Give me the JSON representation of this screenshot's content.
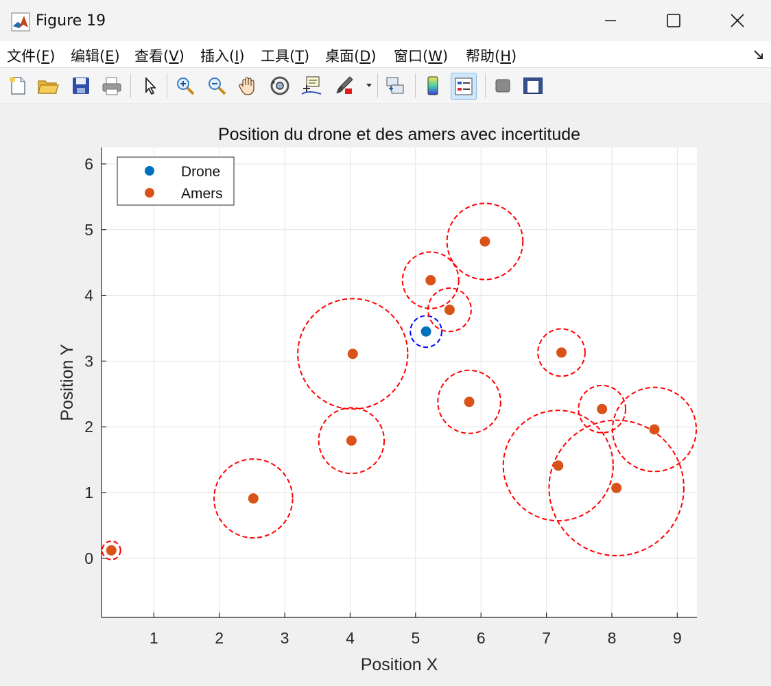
{
  "window": {
    "title": "Figure 19"
  },
  "menu": [
    {
      "label": "文件(",
      "key": "F",
      "suffix": ")"
    },
    {
      "label": "编辑(",
      "key": "E",
      "suffix": ")"
    },
    {
      "label": "查看(",
      "key": "V",
      "suffix": ")"
    },
    {
      "label": "插入(",
      "key": "I",
      "suffix": ")"
    },
    {
      "label": "工具(",
      "key": "T",
      "suffix": ")"
    },
    {
      "label": "桌面(",
      "key": "D",
      "suffix": ")"
    },
    {
      "label": "窗口(",
      "key": "W",
      "suffix": ")"
    },
    {
      "label": "帮助(",
      "key": "H",
      "suffix": ")"
    }
  ],
  "toolbar": [
    "new-figure-icon",
    "open-file-icon",
    "save-icon",
    "print-icon",
    "pointer-icon",
    "zoom-in-icon",
    "zoom-out-icon",
    "pan-hand-icon",
    "rotate-3d-icon",
    "data-cursor-icon",
    "brush-icon",
    "link-plot-icon",
    "colorbar-icon",
    "legend-icon",
    "hide-plot-tools-icon",
    "show-plot-tools-icon"
  ],
  "colors": {
    "drone": "#0072BD",
    "amers": "#D95319",
    "uncertainty_amers": "#FF0000",
    "uncertainty_drone": "#0000FF"
  },
  "chart_data": {
    "type": "scatter",
    "title": "Position du drone et des amers avec incertitude",
    "xlabel": "Position X",
    "ylabel": "Position Y",
    "xlim": [
      0.2,
      9.3
    ],
    "ylim": [
      -0.9,
      6.25
    ],
    "xticks": [
      1,
      2,
      3,
      4,
      5,
      6,
      7,
      8,
      9
    ],
    "yticks": [
      0,
      1,
      2,
      3,
      4,
      5,
      6
    ],
    "grid": true,
    "legend": {
      "placement": "top-left",
      "entries": [
        "Drone",
        "Amers"
      ]
    },
    "series": [
      {
        "name": "Drone",
        "points": [
          {
            "x": 5.16,
            "y": 3.45,
            "r": 0.24
          }
        ]
      },
      {
        "name": "Amers",
        "points": [
          {
            "x": 0.35,
            "y": 0.12,
            "r": 0.14
          },
          {
            "x": 2.52,
            "y": 0.91,
            "r": 0.6
          },
          {
            "x": 4.02,
            "y": 1.79,
            "r": 0.5
          },
          {
            "x": 4.04,
            "y": 3.11,
            "r": 0.84
          },
          {
            "x": 5.23,
            "y": 4.23,
            "r": 0.43
          },
          {
            "x": 5.52,
            "y": 3.78,
            "r": 0.33
          },
          {
            "x": 5.82,
            "y": 2.38,
            "r": 0.48
          },
          {
            "x": 6.06,
            "y": 4.82,
            "r": 0.58
          },
          {
            "x": 7.23,
            "y": 3.13,
            "r": 0.36
          },
          {
            "x": 7.18,
            "y": 1.41,
            "r": 0.84
          },
          {
            "x": 7.85,
            "y": 2.27,
            "r": 0.36
          },
          {
            "x": 8.07,
            "y": 1.07,
            "r": 1.03
          },
          {
            "x": 8.65,
            "y": 1.96,
            "r": 0.64
          }
        ]
      }
    ]
  }
}
